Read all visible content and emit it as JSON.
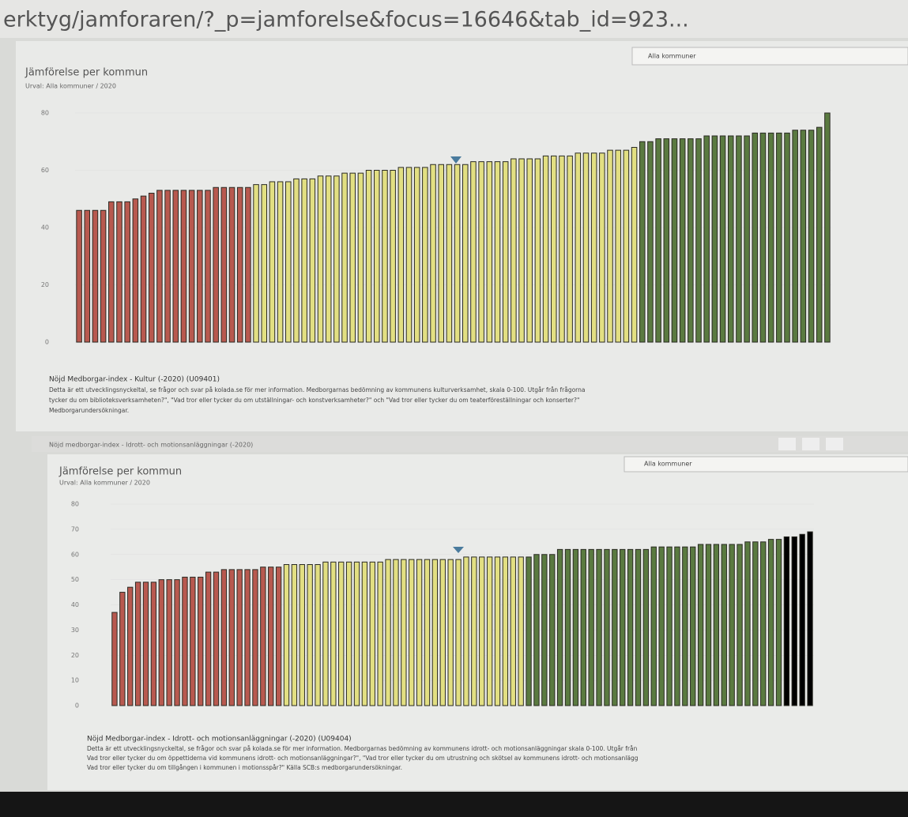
{
  "browser": {
    "url": "erktyg/jamforaren/?_p=jamforelse&focus=16646&tab_id=923..."
  },
  "tab_bar": {
    "label": "Nöjd medborgar-index - Idrott- och motionsanläggningar (-2020)"
  },
  "panels": [
    {
      "dropdown": "Alla kommuner",
      "source_title": "Nöjd Medborgar-index - Kultur (-2020) (U09401)",
      "description": [
        "Detta är ett utvecklingsnyckeltal, se frågor och svar på kolada.se för mer information. Medborgarnas bedömning av kommunens kulturverksamhet, skala 0-100. Utgår från frågorna",
        "tycker du om biblioteksverksamheten?\", \"Vad tror eller tycker du om utställningar- och konstverksamheter?\" och \"Vad tror eller tycker du om teaterföreställningar och konserter?\"",
        "Medborgarundersökningar."
      ]
    },
    {
      "dropdown": "Alla kommuner",
      "source_title": "Nöjd Medborgar-index - Idrott- och motionsanläggningar (-2020) (U09404)",
      "description": [
        "Detta är ett utvecklingsnyckeltal, se frågor och svar på kolada.se för mer information. Medborgarnas bedömning av kommunens idrott- och motionsanläggningar skala 0-100. Utgår från",
        "Vad tror eller tycker du om öppettiderna vid kommunens idrott- och motionsanläggningar?\", \"Vad tror eller tycker du om utrustning och skötsel av kommunens idrott- och motionsanlägg",
        "Vad tror eller tycker du om tillgången i kommunen i motionsspår?\" Källa SCB:s medborgarundersökningar."
      ]
    }
  ],
  "chart_data": [
    {
      "type": "bar",
      "title": "Jämförelse per kommun",
      "subtitle": "Urval: Alla kommuner / 2020",
      "ylim": [
        0,
        80
      ],
      "yticks": [
        0,
        20,
        40,
        60,
        80
      ],
      "values": [
        46,
        46,
        46,
        46,
        49,
        49,
        49,
        50,
        51,
        52,
        53,
        53,
        53,
        53,
        53,
        53,
        53,
        54,
        54,
        54,
        54,
        54,
        55,
        55,
        56,
        56,
        56,
        57,
        57,
        57,
        58,
        58,
        58,
        59,
        59,
        59,
        60,
        60,
        60,
        60,
        61,
        61,
        61,
        61,
        62,
        62,
        62,
        62,
        62,
        63,
        63,
        63,
        63,
        63,
        64,
        64,
        64,
        64,
        65,
        65,
        65,
        65,
        66,
        66,
        66,
        66,
        67,
        67,
        67,
        68,
        70,
        70,
        71,
        71,
        71,
        71,
        71,
        71,
        72,
        72,
        72,
        72,
        72,
        72,
        73,
        73,
        73,
        73,
        73,
        74,
        74,
        74,
        75,
        80
      ],
      "colors": [
        "#b8594f",
        "#b8594f",
        "#b8594f",
        "#b8594f",
        "#b8594f",
        "#b8594f",
        "#b8594f",
        "#b8594f",
        "#b8594f",
        "#b8594f",
        "#b8594f",
        "#b8594f",
        "#b8594f",
        "#b8594f",
        "#b8594f",
        "#b8594f",
        "#b8594f",
        "#b8594f",
        "#b8594f",
        "#b8594f",
        "#b8594f",
        "#b8594f",
        "#e2df82",
        "#e2df82",
        "#e2df82",
        "#e2df82",
        "#e2df82",
        "#e2df82",
        "#e2df82",
        "#e2df82",
        "#e2df82",
        "#e2df82",
        "#e2df82",
        "#e2df82",
        "#e2df82",
        "#e2df82",
        "#e2df82",
        "#e2df82",
        "#e2df82",
        "#e2df82",
        "#e2df82",
        "#e2df82",
        "#e2df82",
        "#e2df82",
        "#e2df82",
        "#e2df82",
        "#e2df82",
        "#e2df82",
        "#e2df82",
        "#e2df82",
        "#e2df82",
        "#e2df82",
        "#e2df82",
        "#e2df82",
        "#e2df82",
        "#e2df82",
        "#e2df82",
        "#e2df82",
        "#e2df82",
        "#e2df82",
        "#e2df82",
        "#e2df82",
        "#e2df82",
        "#e2df82",
        "#e2df82",
        "#e2df82",
        "#e2df82",
        "#e2df82",
        "#e2df82",
        "#e2df82",
        "#5a7a40",
        "#5a7a40",
        "#5a7a40",
        "#5a7a40",
        "#5a7a40",
        "#5a7a40",
        "#5a7a40",
        "#5a7a40",
        "#5a7a40",
        "#5a7a40",
        "#5a7a40",
        "#5a7a40",
        "#5a7a40",
        "#5a7a40",
        "#5a7a40",
        "#5a7a40",
        "#5a7a40",
        "#5a7a40",
        "#5a7a40",
        "#5a7a40",
        "#5a7a40",
        "#5a7a40",
        "#5a7a40",
        "#5a7a40"
      ]
    },
    {
      "type": "bar",
      "title": "Jämförelse per kommun",
      "subtitle": "Urval: Alla kommuner / 2020",
      "ylim": [
        0,
        80
      ],
      "yticks": [
        0,
        10,
        20,
        30,
        40,
        50,
        60,
        70,
        80
      ],
      "values": [
        37,
        45,
        47,
        49,
        49,
        49,
        50,
        50,
        50,
        51,
        51,
        51,
        53,
        53,
        54,
        54,
        54,
        54,
        54,
        55,
        55,
        55,
        56,
        56,
        56,
        56,
        56,
        57,
        57,
        57,
        57,
        57,
        57,
        57,
        57,
        58,
        58,
        58,
        58,
        58,
        58,
        58,
        58,
        58,
        58,
        59,
        59,
        59,
        59,
        59,
        59,
        59,
        59,
        59,
        60,
        60,
        60,
        62,
        62,
        62,
        62,
        62,
        62,
        62,
        62,
        62,
        62,
        62,
        62,
        63,
        63,
        63,
        63,
        63,
        63,
        64,
        64,
        64,
        64,
        64,
        64,
        65,
        65,
        65,
        66,
        66,
        67,
        67,
        68,
        69
      ],
      "colors": [
        "#b8594f",
        "#b8594f",
        "#b8594f",
        "#b8594f",
        "#b8594f",
        "#b8594f",
        "#b8594f",
        "#b8594f",
        "#b8594f",
        "#b8594f",
        "#b8594f",
        "#b8594f",
        "#b8594f",
        "#b8594f",
        "#b8594f",
        "#b8594f",
        "#b8594f",
        "#b8594f",
        "#b8594f",
        "#b8594f",
        "#b8594f",
        "#b8594f",
        "#e2df82",
        "#e2df82",
        "#e2df82",
        "#e2df82",
        "#e2df82",
        "#e2df82",
        "#e2df82",
        "#e2df82",
        "#e2df82",
        "#e2df82",
        "#e2df82",
        "#e2df82",
        "#e2df82",
        "#e2df82",
        "#e2df82",
        "#e2df82",
        "#e2df82",
        "#e2df82",
        "#e2df82",
        "#e2df82",
        "#e2df82",
        "#e2df82",
        "#e2df82",
        "#e2df82",
        "#e2df82",
        "#e2df82",
        "#e2df82",
        "#e2df82",
        "#e2df82",
        "#e2df82",
        "#e2df82",
        "#5a7a40",
        "#5a7a40",
        "#5a7a40",
        "#5a7a40",
        "#5a7a40",
        "#5a7a40",
        "#5a7a40",
        "#5a7a40",
        "#5a7a40",
        "#5a7a40",
        "#5a7a40",
        "#5a7a40",
        "#5a7a40",
        "#5a7a40",
        "#5a7a40",
        "#5a7a40",
        "#5a7a40",
        "#5a7a40",
        "#5a7a40",
        "#5a7a40",
        "#5a7a40",
        "#5a7a40",
        "#5a7a40",
        "#5a7a40",
        "#5a7a40",
        "#5a7a40",
        "#5a7a40",
        "#5a7a40",
        "#5a7a40",
        "#5a7a40",
        "#5a7a40",
        "#5a7a40",
        "#5a7a40"
      ]
    }
  ]
}
